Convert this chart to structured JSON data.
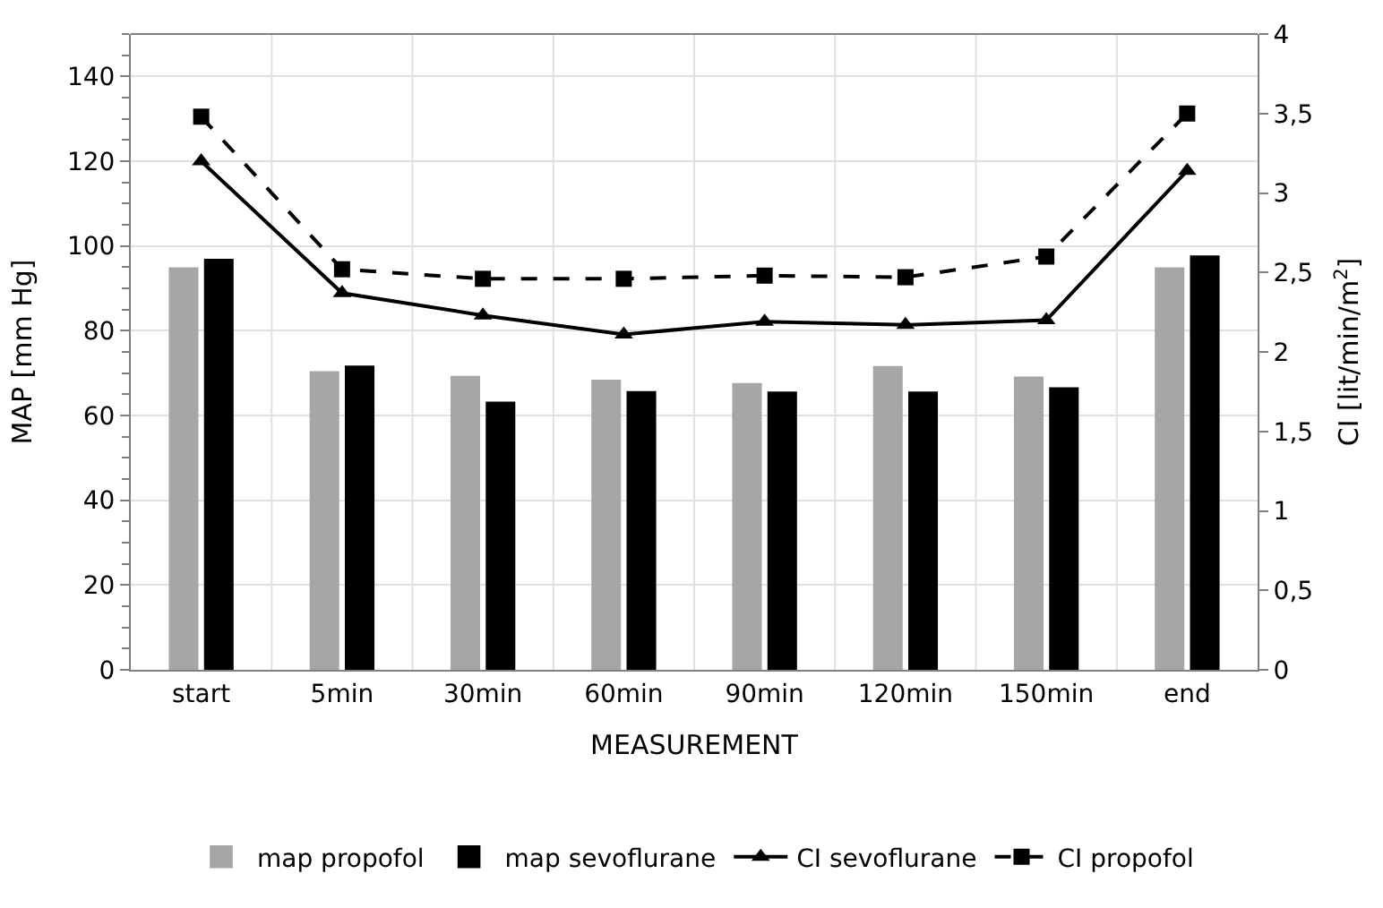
{
  "chart_data": {
    "type": "bar",
    "categories": [
      "start",
      "5min",
      "30min",
      "60min",
      "90min",
      "120min",
      "150min",
      "end"
    ],
    "xlabel": "MEASUREMENT",
    "ylabel": "MAP [mm Hg]",
    "y2label": "CI [lit/min/m$^{2}$]",
    "series": [
      {
        "name": "map propofol",
        "color": "#a6a6a6",
        "values": [
          94.8,
          70.3,
          69.2,
          68.3,
          67.5,
          71.5,
          69.0,
          94.8
        ]
      },
      {
        "name": "map sevoflurane",
        "color": "#000000",
        "values": [
          96.8,
          71.6,
          63.1,
          65.6,
          65.5,
          65.5,
          66.5,
          97.6
        ]
      },
      {
        "name": "CI sevoflurane",
        "type": "line",
        "axis": "y2",
        "color": "#000000",
        "marker": "triangle",
        "line_style": "solid",
        "values": [
          3.2,
          2.37,
          2.23,
          2.11,
          2.19,
          2.17,
          2.2,
          3.14
        ]
      },
      {
        "name": "CI propofol",
        "type": "line",
        "axis": "y2",
        "color": "#000000",
        "marker": "square",
        "line_style": "dashed",
        "values": [
          3.48,
          2.52,
          2.46,
          2.46,
          2.48,
          2.47,
          2.6,
          3.5
        ]
      }
    ],
    "ylim": [
      0,
      150
    ],
    "yticks": [
      0,
      20,
      40,
      60,
      80,
      100,
      120,
      140
    ],
    "y2lim": [
      0,
      4
    ],
    "y2ticks": [
      {
        "value": 0,
        "label": "0"
      },
      {
        "value": 0.5,
        "label": "0,5"
      },
      {
        "value": 1,
        "label": "1"
      },
      {
        "value": 1.5,
        "label": "1,5"
      },
      {
        "value": 2,
        "label": "2"
      },
      {
        "value": 2.5,
        "label": "2,5"
      },
      {
        "value": 3,
        "label": "3"
      },
      {
        "value": 3.5,
        "label": "3,5"
      },
      {
        "value": 4,
        "label": "4"
      }
    ],
    "grid": true,
    "legend": "bottom"
  }
}
